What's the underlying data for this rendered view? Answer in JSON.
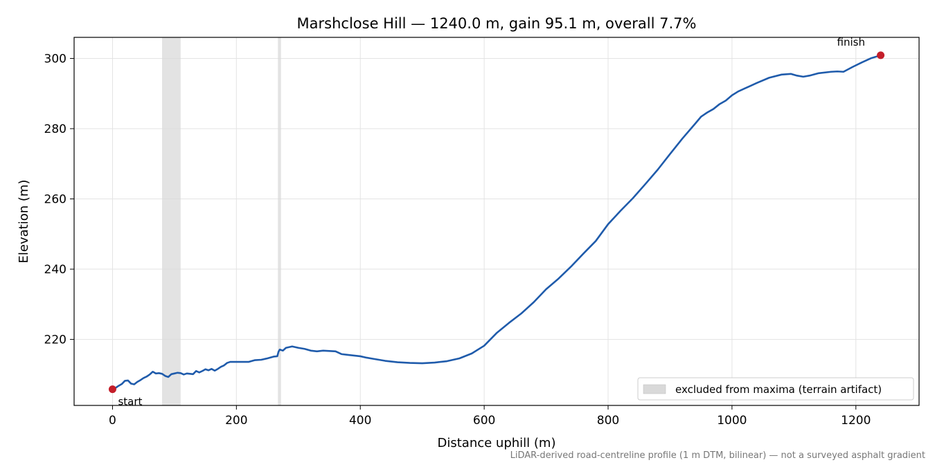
{
  "footnote": "LiDAR-derived road-centreline profile (1 m DTM, bilinear) — not a surveyed asphalt gradient",
  "chart_data": {
    "type": "line",
    "title": "Marshclose Hill — 1240.0 m, gain 95.1 m, overall 7.7%",
    "xlabel": "Distance uphill (m)",
    "ylabel": "Elevation (m)",
    "xlim": [
      -62,
      1302
    ],
    "ylim": [
      201.2,
      306
    ],
    "xticks": [
      0,
      200,
      400,
      600,
      800,
      1000,
      1200
    ],
    "yticks": [
      220,
      240,
      260,
      280,
      300
    ],
    "grid": true,
    "line_color": "#1f5bab",
    "marker_color": "#c41e2a",
    "band_color": "#d9d9d9",
    "excluded_regions": [
      [
        80,
        110
      ],
      [
        267,
        272
      ]
    ],
    "legend": {
      "label": "excluded from maxima (terrain artifact)",
      "position": "lower right"
    },
    "annotations": [
      {
        "text": "start",
        "x": 0,
        "y": 205.8
      },
      {
        "text": "finish",
        "x": 1240,
        "y": 300.9
      }
    ],
    "series": [
      {
        "x": [
          0,
          5,
          10,
          15,
          20,
          25,
          30,
          35,
          40,
          45,
          50,
          55,
          60,
          65,
          70,
          75,
          80,
          85,
          90,
          95,
          100,
          105,
          110,
          115,
          120,
          125,
          130,
          135,
          140,
          145,
          150,
          155,
          160,
          165,
          170,
          175,
          180,
          185,
          190,
          195,
          200,
          210,
          220,
          230,
          240,
          250,
          260,
          266,
          268,
          270,
          275,
          280,
          290,
          300,
          310,
          320,
          330,
          340,
          350,
          360,
          370,
          380,
          390,
          400,
          410,
          420,
          440,
          460,
          480,
          500,
          520,
          540,
          560,
          580,
          600,
          620,
          640,
          660,
          680,
          700,
          720,
          740,
          760,
          780,
          800,
          820,
          840,
          860,
          880,
          900,
          920,
          940,
          950,
          960,
          970,
          980,
          990,
          1000,
          1010,
          1020,
          1030,
          1040,
          1060,
          1080,
          1095,
          1105,
          1115,
          1125,
          1140,
          1160,
          1170,
          1180,
          1195,
          1210,
          1225,
          1240
        ],
        "y": [
          205.8,
          206.2,
          206.8,
          207.3,
          208.2,
          208.3,
          207.4,
          207.2,
          207.9,
          208.4,
          209.0,
          209.4,
          210.0,
          210.8,
          210.3,
          210.4,
          210.2,
          209.6,
          209.3,
          210.1,
          210.3,
          210.5,
          210.4,
          210.0,
          210.3,
          210.2,
          210.1,
          211.0,
          210.6,
          211.0,
          211.5,
          211.2,
          211.6,
          211.1,
          211.6,
          212.2,
          212.6,
          213.3,
          213.6,
          213.6,
          213.6,
          213.6,
          213.6,
          214.1,
          214.2,
          214.6,
          215.1,
          215.2,
          216.5,
          217.1,
          216.8,
          217.6,
          218.0,
          217.6,
          217.3,
          216.8,
          216.6,
          216.8,
          216.7,
          216.6,
          215.8,
          215.6,
          215.4,
          215.2,
          214.8,
          214.5,
          213.9,
          213.5,
          213.3,
          213.2,
          213.4,
          213.8,
          214.6,
          216.0,
          218.2,
          221.8,
          224.7,
          227.4,
          230.6,
          234.3,
          237.3,
          240.7,
          244.4,
          248.0,
          252.8,
          256.6,
          260.2,
          264.2,
          268.3,
          272.8,
          277.2,
          281.3,
          283.4,
          284.6,
          285.6,
          287.0,
          288.0,
          289.5,
          290.6,
          291.4,
          292.2,
          293.0,
          294.5,
          295.4,
          295.6,
          295.1,
          294.8,
          295.1,
          295.8,
          296.2,
          296.3,
          296.2,
          297.6,
          298.9,
          300.1,
          300.9
        ]
      }
    ]
  }
}
